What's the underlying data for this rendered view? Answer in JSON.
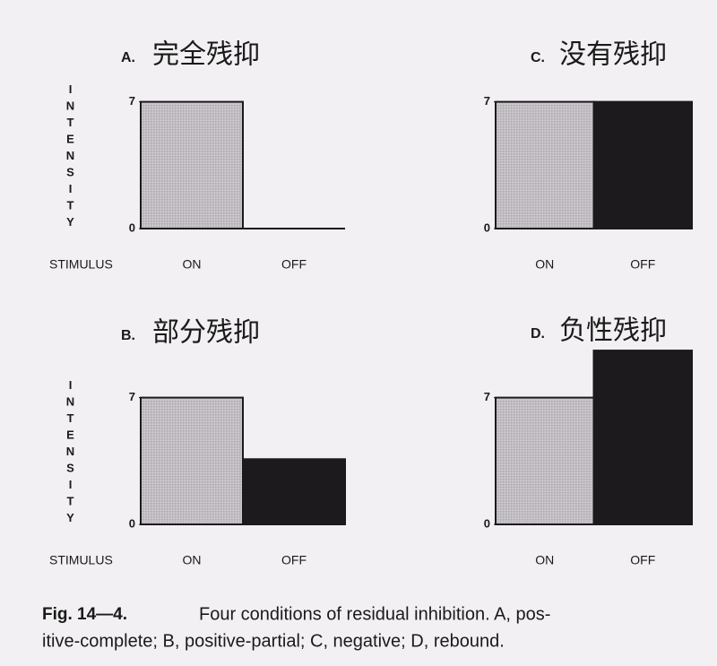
{
  "chart_data": [
    {
      "type": "bar",
      "label": "A.",
      "title": "完全残抑",
      "y_label": "INTENSITY",
      "x_label": "STIMULUS",
      "categories": [
        "ON",
        "OFF"
      ],
      "values": [
        7,
        0
      ],
      "colors": [
        "#c9c5cb",
        "#1c1a1d"
      ],
      "ylim": [
        0,
        10
      ],
      "yticks": [
        0,
        7
      ]
    },
    {
      "type": "bar",
      "label": "B.",
      "title": "部分残抑",
      "y_label": "INTENSITY",
      "x_label": "STIMULUS",
      "categories": [
        "ON",
        "OFF"
      ],
      "values": [
        7,
        3.6
      ],
      "colors": [
        "#c9c5cb",
        "#1c1a1d"
      ],
      "ylim": [
        0,
        10
      ],
      "yticks": [
        0,
        7
      ]
    },
    {
      "type": "bar",
      "label": "C.",
      "title": "没有残抑",
      "categories": [
        "ON",
        "OFF"
      ],
      "values": [
        7,
        7
      ],
      "colors": [
        "#c9c5cb",
        "#1c1a1d"
      ],
      "ylim": [
        0,
        10
      ],
      "yticks": [
        0,
        7
      ]
    },
    {
      "type": "bar",
      "label": "D.",
      "title": "负性残抑",
      "categories": [
        "ON",
        "OFF"
      ],
      "values": [
        7,
        9.6
      ],
      "colors": [
        "#c9c5cb",
        "#1c1a1d"
      ],
      "ylim": [
        0,
        10
      ],
      "yticks": [
        0,
        7
      ]
    }
  ],
  "caption": {
    "label": "Fig. 14—4.",
    "lines": [
      "Four conditions of residual inhibition. A, pos-",
      "itive-complete; B, positive-partial; C, negative; D, rebound."
    ]
  }
}
